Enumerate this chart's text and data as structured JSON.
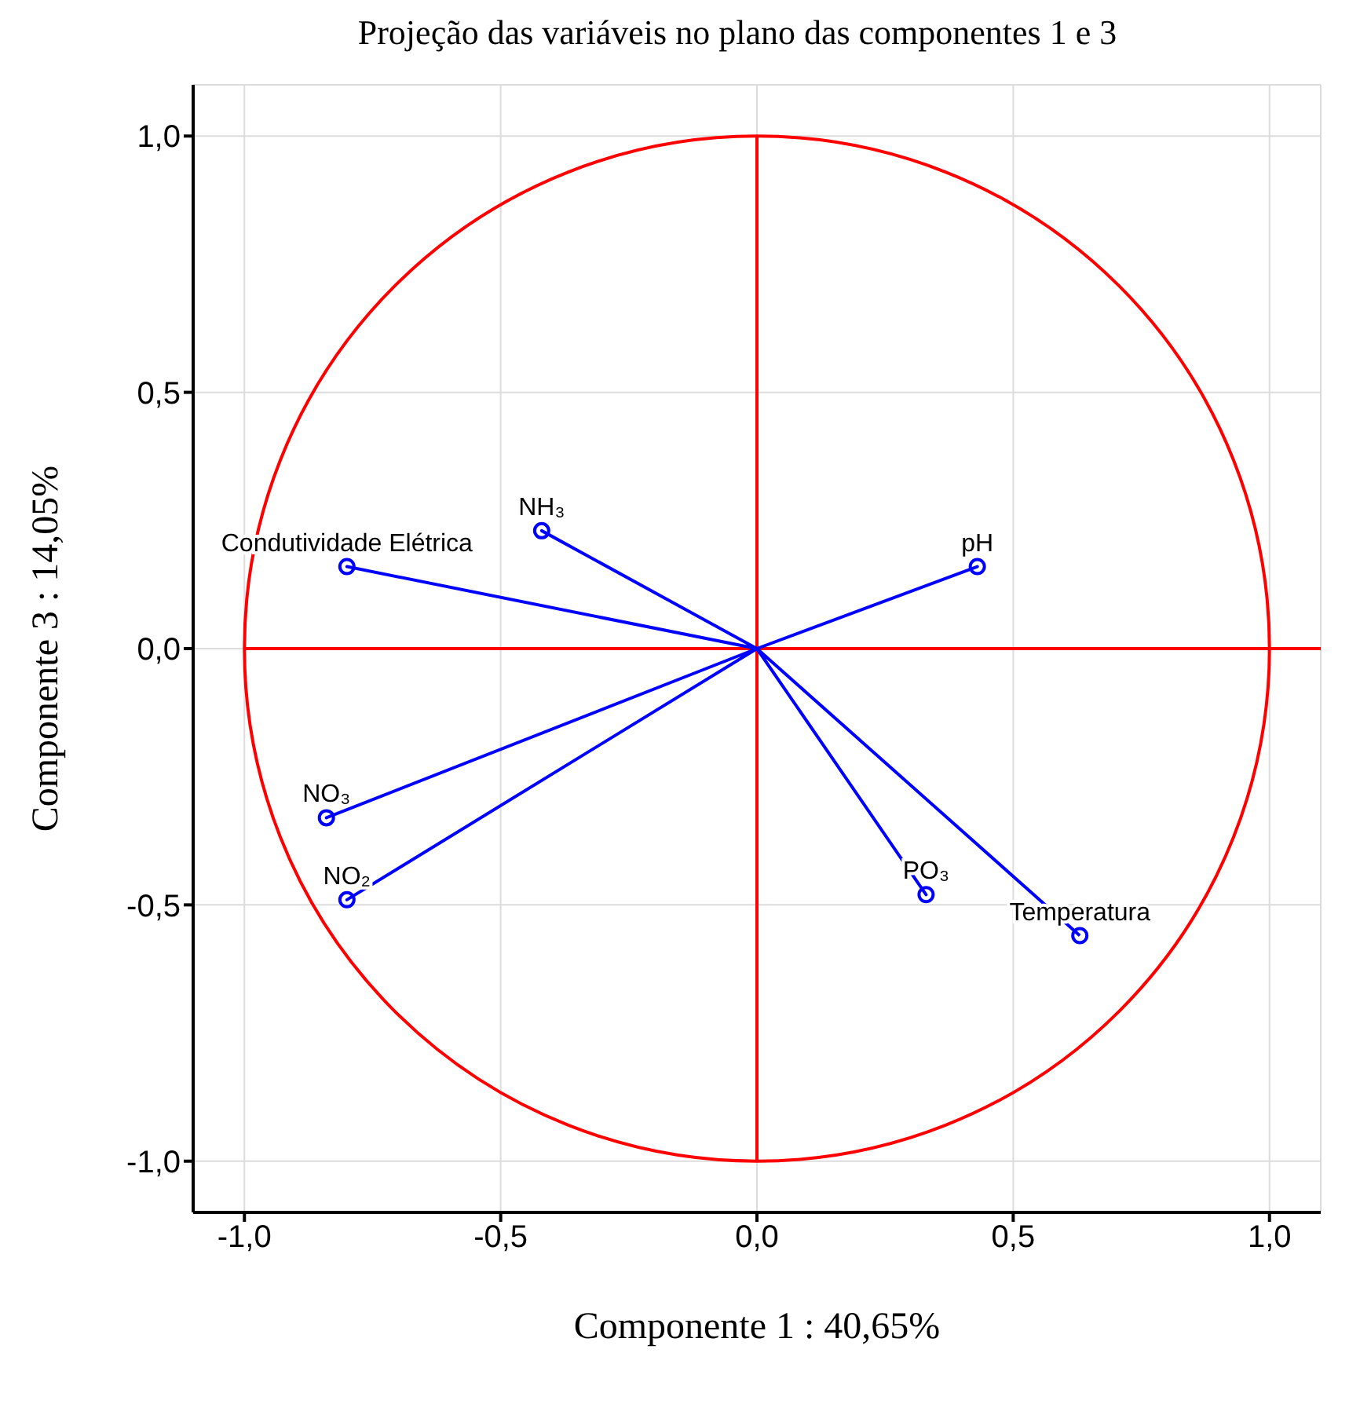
{
  "chart_data": {
    "type": "scatter",
    "title": "Projeção das variáveis no plano das componentes 1 e 3",
    "xlabel": "Componente 1 : 40,65%",
    "ylabel": "Componente 3 : 14,05%",
    "xlim": [
      -1.1,
      1.1
    ],
    "ylim": [
      -1.1,
      1.1
    ],
    "xticks": [
      {
        "value": -1,
        "label": "-1,0"
      },
      {
        "value": -0.5,
        "label": "-0,5"
      },
      {
        "value": 0,
        "label": "0,0"
      },
      {
        "value": 0.5,
        "label": "0,5"
      },
      {
        "value": 1,
        "label": "1,0"
      }
    ],
    "yticks": [
      {
        "value": -1,
        "label": "-1,0"
      },
      {
        "value": -0.5,
        "label": "-0,5"
      },
      {
        "value": 0,
        "label": "0,0"
      },
      {
        "value": 0.5,
        "label": "0,5"
      },
      {
        "value": 1,
        "label": "1,0"
      }
    ],
    "grid": true,
    "legend": false,
    "series": [
      {
        "type": "line",
        "color": "#ff0000",
        "marker": "none",
        "x": [
          0,
          0
        ],
        "values": [
          1,
          -1
        ]
      },
      {
        "type": "line",
        "color": "#ff0000",
        "marker": "none",
        "x": [
          -1,
          1.1
        ],
        "values": [
          0,
          0
        ]
      },
      {
        "type": "line",
        "color": "#0000ff",
        "marker": "none",
        "x": [
          0,
          -0.8,
          0,
          -0.42,
          0,
          0.43,
          0,
          -0.84,
          0,
          -0.8,
          0,
          0.33,
          0,
          0.63
        ],
        "values": [
          0,
          0.16,
          0,
          0.23,
          0,
          0.16,
          0,
          -0.33,
          0,
          -0.49,
          0,
          -0.48,
          0,
          -0.56
        ]
      },
      {
        "type": "scatter",
        "color": "#0000ff",
        "marker": "circle",
        "x": [
          -0.8,
          -0.42,
          0.43,
          -0.84,
          -0.8,
          0.33,
          0.63
        ],
        "values": [
          0.16,
          0.23,
          0.16,
          -0.33,
          -0.49,
          -0.48,
          -0.56
        ]
      }
    ],
    "annotations": [
      {
        "text": "Condutividade Elétrica",
        "x": -0.8,
        "y": 0.16
      },
      {
        "text": "NH₃",
        "x": -0.42,
        "y": 0.23
      },
      {
        "text": "pH",
        "x": 0.43,
        "y": 0.16
      },
      {
        "text": "NO₃",
        "x": -0.84,
        "y": -0.33
      },
      {
        "text": "NO₂",
        "x": -0.8,
        "y": -0.49
      },
      {
        "text": "PO₃",
        "x": 0.33,
        "y": -0.48
      },
      {
        "text": "Temperatura",
        "x": 0.63,
        "y": -0.56
      }
    ]
  }
}
